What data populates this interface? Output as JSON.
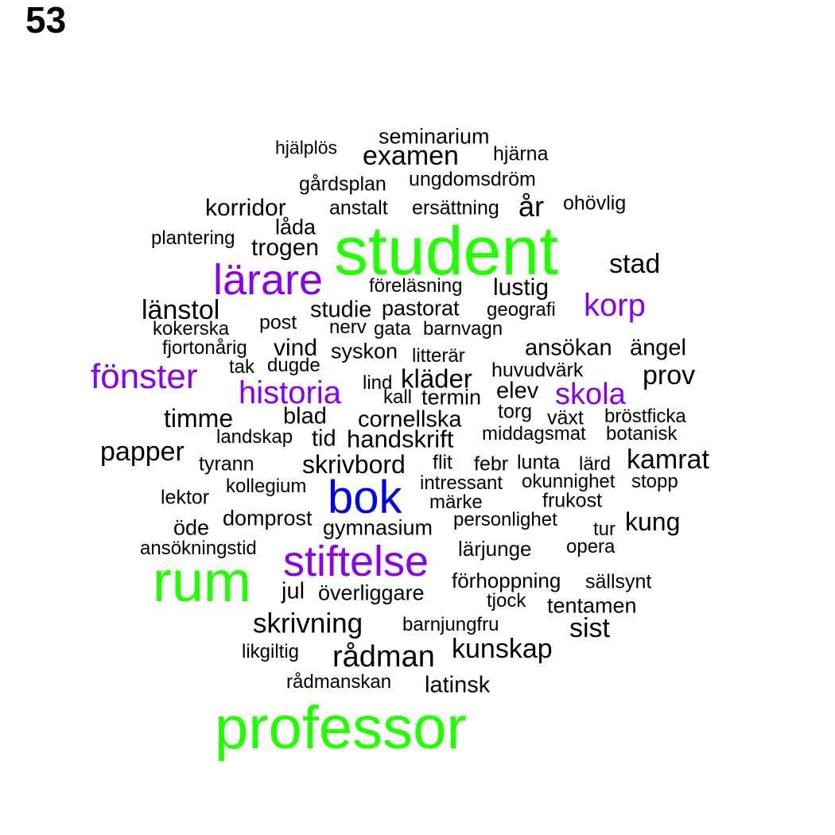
{
  "page_number": "53",
  "colors": {
    "green": "#22ff00",
    "purple": "#8800ee",
    "blue": "#0000ee",
    "black": "#000000"
  },
  "words": [
    {
      "text": "seminarium",
      "color": "black"
    },
    {
      "text": "hjälplös",
      "color": "black"
    },
    {
      "text": "examen",
      "color": "black"
    },
    {
      "text": "hjärna",
      "color": "black"
    },
    {
      "text": "ungdomsdröm",
      "color": "black"
    },
    {
      "text": "gårdsplan",
      "color": "black"
    },
    {
      "text": "korridor",
      "color": "black"
    },
    {
      "text": "anstalt",
      "color": "black"
    },
    {
      "text": "ersättning",
      "color": "black"
    },
    {
      "text": "år",
      "color": "black"
    },
    {
      "text": "ohövlig",
      "color": "black"
    },
    {
      "text": "låda",
      "color": "black"
    },
    {
      "text": "plantering",
      "color": "black"
    },
    {
      "text": "trogen",
      "color": "black"
    },
    {
      "text": "student",
      "color": "green"
    },
    {
      "text": "stad",
      "color": "black"
    },
    {
      "text": "lärare",
      "color": "purple"
    },
    {
      "text": "föreläsning",
      "color": "black"
    },
    {
      "text": "lustig",
      "color": "black"
    },
    {
      "text": "korp",
      "color": "purple"
    },
    {
      "text": "länstol",
      "color": "black"
    },
    {
      "text": "studie",
      "color": "black"
    },
    {
      "text": "pastorat",
      "color": "black"
    },
    {
      "text": "geografi",
      "color": "black"
    },
    {
      "text": "post",
      "color": "black"
    },
    {
      "text": "kokerska",
      "color": "black"
    },
    {
      "text": "nerv",
      "color": "black"
    },
    {
      "text": "gata",
      "color": "black"
    },
    {
      "text": "barnvagn",
      "color": "black"
    },
    {
      "text": "fjortonårig",
      "color": "black"
    },
    {
      "text": "vind",
      "color": "black"
    },
    {
      "text": "syskon",
      "color": "black"
    },
    {
      "text": "litterär",
      "color": "black"
    },
    {
      "text": "ansökan",
      "color": "black"
    },
    {
      "text": "ängel",
      "color": "black"
    },
    {
      "text": "fönster",
      "color": "purple"
    },
    {
      "text": "tak",
      "color": "black"
    },
    {
      "text": "dugde",
      "color": "black"
    },
    {
      "text": "lind",
      "color": "black"
    },
    {
      "text": "kläder",
      "color": "black"
    },
    {
      "text": "huvudvärk",
      "color": "black"
    },
    {
      "text": "prov",
      "color": "black"
    },
    {
      "text": "historia",
      "color": "purple"
    },
    {
      "text": "kall",
      "color": "black"
    },
    {
      "text": "termin",
      "color": "black"
    },
    {
      "text": "elev",
      "color": "black"
    },
    {
      "text": "skola",
      "color": "purple"
    },
    {
      "text": "torg",
      "color": "black"
    },
    {
      "text": "timme",
      "color": "black"
    },
    {
      "text": "blad",
      "color": "black"
    },
    {
      "text": "cornellska",
      "color": "black"
    },
    {
      "text": "växt",
      "color": "black"
    },
    {
      "text": "bröstficka",
      "color": "black"
    },
    {
      "text": "landskap",
      "color": "black"
    },
    {
      "text": "tid",
      "color": "black"
    },
    {
      "text": "handskrift",
      "color": "black"
    },
    {
      "text": "middagsmat",
      "color": "black"
    },
    {
      "text": "botanisk",
      "color": "black"
    },
    {
      "text": "papper",
      "color": "black"
    },
    {
      "text": "tyrann",
      "color": "black"
    },
    {
      "text": "skrivbord",
      "color": "black"
    },
    {
      "text": "flit",
      "color": "black"
    },
    {
      "text": "febr",
      "color": "black"
    },
    {
      "text": "lunta",
      "color": "black"
    },
    {
      "text": "lärd",
      "color": "black"
    },
    {
      "text": "kamrat",
      "color": "black"
    },
    {
      "text": "kollegium",
      "color": "black"
    },
    {
      "text": "bok",
      "color": "blue"
    },
    {
      "text": "intressant",
      "color": "black"
    },
    {
      "text": "okunnighet",
      "color": "black"
    },
    {
      "text": "stopp",
      "color": "black"
    },
    {
      "text": "lektor",
      "color": "black"
    },
    {
      "text": "märke",
      "color": "black"
    },
    {
      "text": "frukost",
      "color": "black"
    },
    {
      "text": "domprost",
      "color": "black"
    },
    {
      "text": "personlighet",
      "color": "black"
    },
    {
      "text": "kung",
      "color": "black"
    },
    {
      "text": "öde",
      "color": "black"
    },
    {
      "text": "gymnasium",
      "color": "black"
    },
    {
      "text": "tur",
      "color": "black"
    },
    {
      "text": "ansökningstid",
      "color": "black"
    },
    {
      "text": "lärjunge",
      "color": "black"
    },
    {
      "text": "opera",
      "color": "black"
    },
    {
      "text": "stiftelse",
      "color": "purple"
    },
    {
      "text": "rum",
      "color": "green"
    },
    {
      "text": "förhoppning",
      "color": "black"
    },
    {
      "text": "sällsynt",
      "color": "black"
    },
    {
      "text": "jul",
      "color": "black"
    },
    {
      "text": "överliggare",
      "color": "black"
    },
    {
      "text": "tjock",
      "color": "black"
    },
    {
      "text": "tentamen",
      "color": "black"
    },
    {
      "text": "skrivning",
      "color": "black"
    },
    {
      "text": "barnjungfru",
      "color": "black"
    },
    {
      "text": "sist",
      "color": "black"
    },
    {
      "text": "kunskap",
      "color": "black"
    },
    {
      "text": "likgiltig",
      "color": "black"
    },
    {
      "text": "rådman",
      "color": "black"
    },
    {
      "text": "rådmanskan",
      "color": "black"
    },
    {
      "text": "latinsk",
      "color": "black"
    },
    {
      "text": "professor",
      "color": "green"
    }
  ]
}
